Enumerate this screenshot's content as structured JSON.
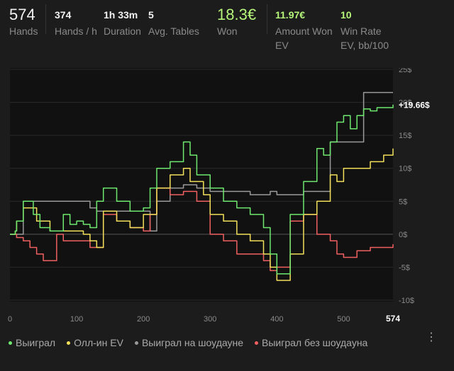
{
  "stats": {
    "hands": {
      "value": "574",
      "label": "Hands"
    },
    "hands_per_hour": {
      "value": "374",
      "label": "Hands / h"
    },
    "duration": {
      "value": "1h 33m",
      "label": "Duration"
    },
    "avg_tables": {
      "value": "5",
      "label": "Avg. Tables"
    },
    "won": {
      "value": "18.3€",
      "label": "Won"
    },
    "amount_won_ev": {
      "value": "11.97€",
      "label": "Amount Won EV"
    },
    "win_rate_ev": {
      "value": "10",
      "label": "Win Rate EV, bb/100"
    }
  },
  "colors": {
    "background": "#1c1c1c",
    "plot_background": "#111111",
    "won": "#6ee86e",
    "allin_ev": "#f2e05a",
    "showdown": "#9a9a9a",
    "non_showdown": "#f06060",
    "accent_green": "#b5f57a"
  },
  "chart_data": {
    "type": "line",
    "title": "",
    "xlabel": "",
    "ylabel": "",
    "xlim": [
      0,
      574
    ],
    "ylim": [
      -10,
      25
    ],
    "x_ticks": [
      "0",
      "100",
      "200",
      "300",
      "400",
      "500"
    ],
    "x_end_label": "574",
    "y_ticks": [
      "25$",
      "20$",
      "15$",
      "10$",
      "5$",
      "0$",
      "-5$",
      "-10$"
    ],
    "grid": true,
    "end_annotation": "+19.66$",
    "legend_position": "bottom",
    "series": [
      {
        "name": "Выиграл",
        "color": "#6ee86e",
        "x": [
          0,
          8,
          10,
          20,
          35,
          45,
          60,
          80,
          90,
          100,
          110,
          120,
          130,
          140,
          160,
          180,
          200,
          210,
          220,
          240,
          260,
          270,
          280,
          300,
          320,
          340,
          360,
          380,
          390,
          400,
          420,
          440,
          460,
          470,
          480,
          490,
          500,
          510,
          520,
          530,
          540,
          550,
          574
        ],
        "y": [
          0,
          0.5,
          2,
          5,
          3,
          1,
          0.5,
          3,
          1.5,
          2,
          1.5,
          1,
          5,
          7,
          5,
          3.5,
          4,
          7,
          10,
          11,
          14,
          12,
          9,
          7,
          5,
          4,
          3,
          1,
          -3,
          -6,
          3,
          8,
          13,
          12,
          14,
          17,
          18,
          16,
          18,
          19,
          18.7,
          19.2,
          19.66
        ]
      },
      {
        "name": "Олл-ин EV",
        "color": "#f2e05a",
        "x": [
          0,
          8,
          10,
          20,
          40,
          60,
          90,
          110,
          120,
          130,
          140,
          160,
          180,
          200,
          220,
          240,
          260,
          270,
          290,
          300,
          320,
          340,
          360,
          380,
          390,
          400,
          420,
          440,
          460,
          480,
          490,
          500,
          520,
          540,
          560,
          574
        ],
        "y": [
          0,
          0.5,
          2,
          4,
          2,
          0.5,
          0.5,
          0,
          -1,
          -2,
          3.5,
          2,
          1,
          3,
          7,
          9,
          10,
          8,
          6,
          3,
          2,
          0,
          -1,
          -3,
          -5,
          -7,
          -3,
          3,
          5,
          9,
          8,
          10,
          10,
          11,
          12,
          13
        ]
      },
      {
        "name": "Выиграл на шоудауне",
        "color": "#9a9a9a",
        "x": [
          0,
          10,
          20,
          40,
          60,
          80,
          100,
          120,
          130,
          140,
          160,
          180,
          200,
          210,
          220,
          240,
          260,
          280,
          300,
          320,
          340,
          360,
          380,
          390,
          400,
          420,
          440,
          460,
          480,
          500,
          520,
          530,
          540,
          574
        ],
        "y": [
          0,
          0,
          5,
          5,
          5,
          5,
          5,
          4,
          3.5,
          3.5,
          3.5,
          3.5,
          3.5,
          0.5,
          5,
          7,
          7.5,
          7,
          6.5,
          6.5,
          6.5,
          6,
          6,
          6.5,
          6,
          6,
          6.5,
          6.5,
          14,
          14,
          14,
          21.5,
          21.5,
          21.5
        ]
      },
      {
        "name": "Выиграл без шоудауна",
        "color": "#f06060",
        "x": [
          0,
          10,
          20,
          30,
          40,
          50,
          60,
          70,
          80,
          100,
          120,
          130,
          140,
          160,
          180,
          200,
          210,
          220,
          240,
          260,
          280,
          300,
          320,
          340,
          360,
          380,
          390,
          400,
          420,
          440,
          460,
          480,
          490,
          500,
          520,
          540,
          574
        ],
        "y": [
          0,
          -0.5,
          -1,
          -2,
          -3,
          -4,
          -4,
          0,
          -1,
          -1,
          -2,
          -2,
          3,
          2,
          1,
          0.5,
          3,
          7,
          6,
          6.5,
          5,
          0,
          -1,
          -3,
          -3,
          -4,
          -5.5,
          -5,
          2,
          3,
          0,
          -1,
          -3,
          -3.5,
          -2.5,
          -2,
          -1.5
        ]
      }
    ]
  }
}
